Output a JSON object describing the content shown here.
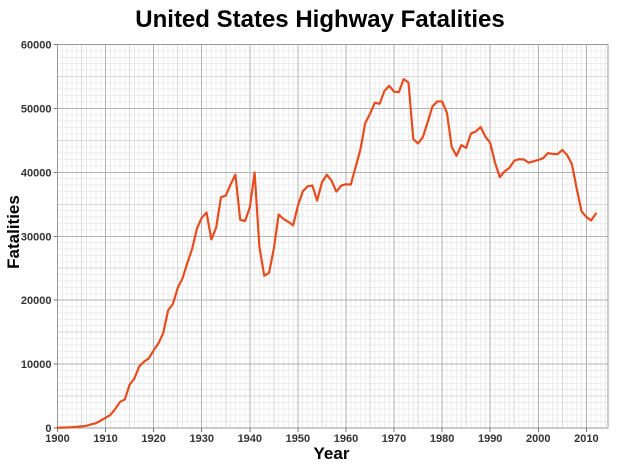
{
  "chart_data": {
    "type": "line",
    "title": "United States Highway Fatalities",
    "xlabel": "Year",
    "ylabel": "Fatalities",
    "xlim": [
      1900,
      2014.5
    ],
    "ylim": [
      0,
      60000
    ],
    "x_ticks": [
      "1900",
      "1910",
      "1920",
      "1930",
      "1940",
      "1950",
      "1960",
      "1970",
      "1980",
      "1990",
      "2000",
      "2010"
    ],
    "y_ticks": [
      "0",
      "10000",
      "20000",
      "30000",
      "40000",
      "50000",
      "60000"
    ],
    "grid": {
      "style": "graph-paper",
      "minor_x_step_years": 1,
      "medium_x_step_years": 5,
      "major_x_step_years": 10,
      "minor_y_step": 1000,
      "medium_y_step": 5000,
      "major_y_step": 10000
    },
    "legend": "none",
    "colors": {
      "line": "#E74C1E",
      "grid_minor": "#ececec",
      "grid_medium": "#d9d9d9",
      "grid_major": "#b3b3b3",
      "frame": "#999999",
      "tick_mark": "#777777",
      "tick_text": "#333333",
      "title_text": "#000000"
    },
    "series": [
      {
        "name": "Highway fatalities",
        "points": [
          [
            1900,
            36
          ],
          [
            1901,
            54
          ],
          [
            1902,
            79
          ],
          [
            1903,
            117
          ],
          [
            1904,
            172
          ],
          [
            1905,
            252
          ],
          [
            1906,
            338
          ],
          [
            1907,
            581
          ],
          [
            1908,
            751
          ],
          [
            1909,
            1174
          ],
          [
            1910,
            1599
          ],
          [
            1911,
            2043
          ],
          [
            1912,
            2968
          ],
          [
            1913,
            4079
          ],
          [
            1914,
            4468
          ],
          [
            1915,
            6779
          ],
          [
            1916,
            7766
          ],
          [
            1917,
            9630
          ],
          [
            1918,
            10390
          ],
          [
            1919,
            10896
          ],
          [
            1920,
            12155
          ],
          [
            1921,
            13253
          ],
          [
            1922,
            14859
          ],
          [
            1923,
            18400
          ],
          [
            1924,
            19400
          ],
          [
            1925,
            21900
          ],
          [
            1926,
            23400
          ],
          [
            1927,
            25800
          ],
          [
            1928,
            28000
          ],
          [
            1929,
            31200
          ],
          [
            1930,
            32900
          ],
          [
            1931,
            33700
          ],
          [
            1932,
            29500
          ],
          [
            1933,
            31363
          ],
          [
            1934,
            36101
          ],
          [
            1935,
            36369
          ],
          [
            1936,
            38089
          ],
          [
            1937,
            39643
          ],
          [
            1938,
            32582
          ],
          [
            1939,
            32386
          ],
          [
            1940,
            34501
          ],
          [
            1941,
            39969
          ],
          [
            1942,
            28309
          ],
          [
            1943,
            23823
          ],
          [
            1944,
            24282
          ],
          [
            1945,
            28076
          ],
          [
            1946,
            33411
          ],
          [
            1947,
            32697
          ],
          [
            1948,
            32259
          ],
          [
            1949,
            31701
          ],
          [
            1950,
            34763
          ],
          [
            1951,
            36996
          ],
          [
            1952,
            37794
          ],
          [
            1953,
            37956
          ],
          [
            1954,
            35586
          ],
          [
            1955,
            38426
          ],
          [
            1956,
            39628
          ],
          [
            1957,
            38702
          ],
          [
            1958,
            36981
          ],
          [
            1959,
            37910
          ],
          [
            1960,
            38137
          ],
          [
            1961,
            38091
          ],
          [
            1962,
            40804
          ],
          [
            1963,
            43564
          ],
          [
            1964,
            47700
          ],
          [
            1965,
            49163
          ],
          [
            1966,
            50894
          ],
          [
            1967,
            50724
          ],
          [
            1968,
            52725
          ],
          [
            1969,
            53543
          ],
          [
            1970,
            52627
          ],
          [
            1971,
            52542
          ],
          [
            1972,
            54589
          ],
          [
            1973,
            54052
          ],
          [
            1974,
            45196
          ],
          [
            1975,
            44525
          ],
          [
            1976,
            45523
          ],
          [
            1977,
            47878
          ],
          [
            1978,
            50331
          ],
          [
            1979,
            51093
          ],
          [
            1980,
            51091
          ],
          [
            1981,
            49301
          ],
          [
            1982,
            43945
          ],
          [
            1983,
            42589
          ],
          [
            1984,
            44257
          ],
          [
            1985,
            43825
          ],
          [
            1986,
            46087
          ],
          [
            1987,
            46390
          ],
          [
            1988,
            47087
          ],
          [
            1989,
            45582
          ],
          [
            1990,
            44599
          ],
          [
            1991,
            41508
          ],
          [
            1992,
            39250
          ],
          [
            1993,
            40150
          ],
          [
            1994,
            40716
          ],
          [
            1995,
            41817
          ],
          [
            1996,
            42065
          ],
          [
            1997,
            42013
          ],
          [
            1998,
            41501
          ],
          [
            1999,
            41717
          ],
          [
            2000,
            41945
          ],
          [
            2001,
            42196
          ],
          [
            2002,
            43005
          ],
          [
            2003,
            42884
          ],
          [
            2004,
            42836
          ],
          [
            2005,
            43510
          ],
          [
            2006,
            42708
          ],
          [
            2007,
            41259
          ],
          [
            2008,
            37423
          ],
          [
            2009,
            33883
          ],
          [
            2010,
            32999
          ],
          [
            2011,
            32479
          ],
          [
            2012,
            33561
          ]
        ]
      }
    ]
  }
}
